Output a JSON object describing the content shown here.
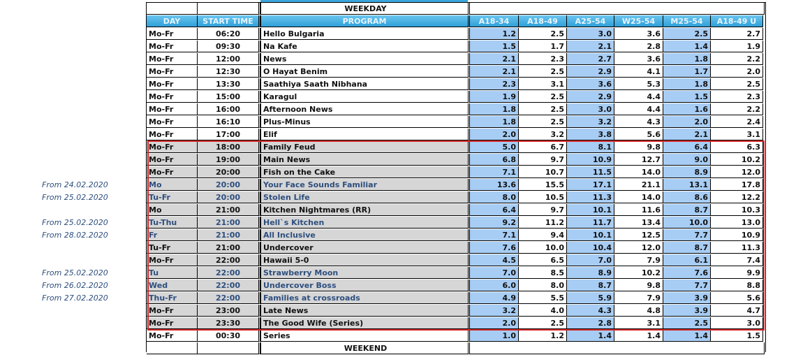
{
  "header": {
    "group_weekday": "WEEKDAY",
    "group_weekend": "WEEKEND",
    "columns": [
      "DAY",
      "START TIME",
      "PROGRAM",
      "A18-34",
      "A18-49",
      "A25-54",
      "W25-54",
      "M25-54",
      "A18-49 U"
    ]
  },
  "colors": {
    "header_blue": "#2e9fd8",
    "highlight_blue": "#a8cdf4",
    "prime_gray": "#d6d6d6",
    "prime_border": "#d42a2a",
    "note_text": "#2d4e7e"
  },
  "rows": [
    {
      "day": "Mo-Fr",
      "time": "06:20",
      "program": "Hello Bulgaria",
      "v": [
        "1.2",
        "2.5",
        "3.0",
        "3.6",
        "2.5",
        "2.7"
      ]
    },
    {
      "day": "Mo-Fr",
      "time": "09:30",
      "program": "Na Kafe",
      "v": [
        "1.5",
        "1.7",
        "2.1",
        "2.8",
        "1.4",
        "1.9"
      ]
    },
    {
      "day": "Mo-Fr",
      "time": "12:00",
      "program": "News",
      "v": [
        "2.1",
        "2.3",
        "2.7",
        "3.6",
        "1.8",
        "2.2"
      ]
    },
    {
      "day": "Mo-Fr",
      "time": "12:30",
      "program": "O Hayat Benim",
      "v": [
        "2.1",
        "2.5",
        "2.9",
        "4.1",
        "1.7",
        "2.0"
      ]
    },
    {
      "day": "Mo-Fr",
      "time": "13:30",
      "program": "Saathiya Saath Nibhana",
      "v": [
        "2.3",
        "3.1",
        "3.6",
        "5.3",
        "1.8",
        "2.5"
      ]
    },
    {
      "day": "Mo-Fr",
      "time": "15:00",
      "program": "Karagul",
      "v": [
        "1.9",
        "2.5",
        "2.9",
        "4.4",
        "1.5",
        "2.3"
      ]
    },
    {
      "day": "Mo-Fr",
      "time": "16:00",
      "program": "Afternoon News",
      "v": [
        "1.8",
        "2.5",
        "3.0",
        "4.4",
        "1.6",
        "2.2"
      ]
    },
    {
      "day": "Mo-Fr",
      "time": "16:10",
      "program": "Plus-Minus",
      "v": [
        "1.8",
        "2.5",
        "3.2",
        "4.3",
        "2.0",
        "2.4"
      ]
    },
    {
      "day": "Mo-Fr",
      "time": "17:00",
      "program": "Elif",
      "v": [
        "2.0",
        "3.2",
        "3.8",
        "5.6",
        "2.1",
        "3.1"
      ]
    },
    {
      "day": "Mo-Fr",
      "time": "18:00",
      "program": "Family Feud",
      "v": [
        "5.0",
        "6.7",
        "8.1",
        "9.8",
        "6.4",
        "6.3"
      ],
      "prime": true
    },
    {
      "day": "Mo-Fr",
      "time": "19:00",
      "program": "Main News",
      "v": [
        "6.8",
        "9.7",
        "10.9",
        "12.7",
        "9.0",
        "10.2"
      ],
      "prime": true
    },
    {
      "day": "Mo-Fr",
      "time": "20:00",
      "program": "Fish on the Cake",
      "v": [
        "7.1",
        "10.7",
        "11.5",
        "14.0",
        "8.9",
        "12.0"
      ],
      "prime": true
    },
    {
      "day": "Mo",
      "time": "20:00",
      "program": "Your Face Sounds Familiar",
      "v": [
        "13.6",
        "15.5",
        "17.1",
        "21.1",
        "13.1",
        "17.8"
      ],
      "prime": true,
      "note": "From 24.02.2020"
    },
    {
      "day": "Tu-Fr",
      "time": "20:00",
      "program": "Stolen Life",
      "v": [
        "8.0",
        "10.5",
        "11.3",
        "14.0",
        "8.6",
        "12.2"
      ],
      "prime": true,
      "note": "From 25.02.2020"
    },
    {
      "day": "Mo",
      "time": "21:00",
      "program": "Kitchen Nightmares (RR)",
      "v": [
        "6.4",
        "9.7",
        "10.1",
        "11.6",
        "8.7",
        "10.3"
      ],
      "prime": true
    },
    {
      "day": "Tu-Thu",
      "time": "21:00",
      "program": "Hell`s Kitchen",
      "v": [
        "9.2",
        "11.2",
        "11.7",
        "13.4",
        "10.0",
        "13.0"
      ],
      "prime": true,
      "note": "From 25.02.2020"
    },
    {
      "day": "Fr",
      "time": "21:00",
      "program": "All Inclusive",
      "v": [
        "7.1",
        "9.4",
        "10.1",
        "12.5",
        "7.7",
        "10.9"
      ],
      "prime": true,
      "note": "From 28.02.2020"
    },
    {
      "day": "Tu-Fr",
      "time": "21:00",
      "program": "Undercover",
      "v": [
        "7.6",
        "10.0",
        "10.4",
        "12.0",
        "8.7",
        "11.3"
      ],
      "prime": true
    },
    {
      "day": "Mo-Fr",
      "time": "22:00",
      "program": "Hawaii 5-0",
      "v": [
        "4.5",
        "6.5",
        "7.0",
        "7.9",
        "6.1",
        "7.4"
      ],
      "prime": true
    },
    {
      "day": "Tu",
      "time": "22:00",
      "program": "Strawberry Moon",
      "v": [
        "7.0",
        "8.5",
        "8.9",
        "10.2",
        "7.6",
        "9.9"
      ],
      "prime": true,
      "note": "From 25.02.2020"
    },
    {
      "day": "Wed",
      "time": "22:00",
      "program": "Undercover Boss",
      "v": [
        "6.0",
        "8.0",
        "8.7",
        "9.8",
        "7.7",
        "8.8"
      ],
      "prime": true,
      "note": "From 26.02.2020"
    },
    {
      "day": "Thu-Fr",
      "time": "22:00",
      "program": "Families at crossroads",
      "v": [
        "4.9",
        "5.5",
        "5.9",
        "7.9",
        "3.9",
        "5.6"
      ],
      "prime": true,
      "note": "From 27.02.2020"
    },
    {
      "day": "Mo-Fr",
      "time": "23:00",
      "program": "Late News",
      "v": [
        "3.2",
        "4.0",
        "4.3",
        "4.8",
        "3.9",
        "4.7"
      ],
      "prime": true
    },
    {
      "day": "Mo-Fr",
      "time": "23:30",
      "program": "The Good Wife (Series)",
      "v": [
        "2.0",
        "2.5",
        "2.8",
        "3.1",
        "2.5",
        "3.0"
      ],
      "prime": true
    },
    {
      "day": "Mo-Fr",
      "time": "00:30",
      "program": "Series",
      "v": [
        "1.0",
        "1.2",
        "1.4",
        "1.4",
        "1.4",
        "1.5"
      ]
    }
  ]
}
